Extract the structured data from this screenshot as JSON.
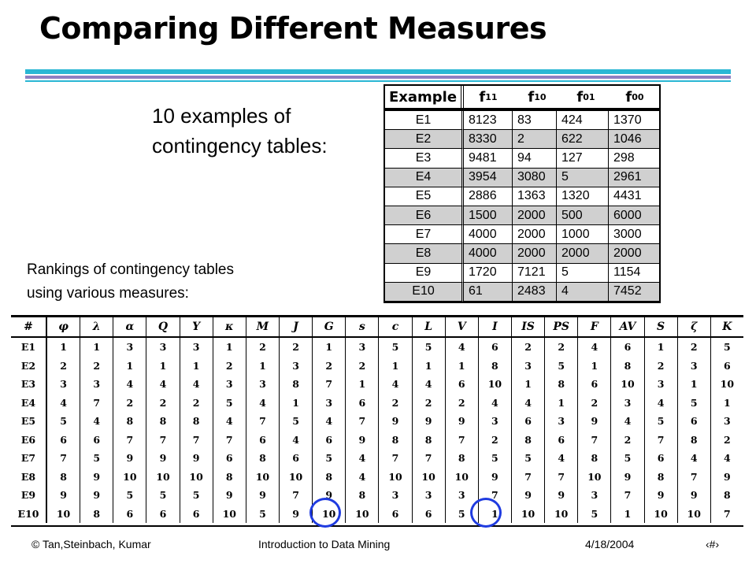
{
  "slide": {
    "title": "Comparing Different Measures",
    "intro_line1": "10 examples of",
    "intro_line2": "contingency tables:",
    "rank_line1": "Rankings of contingency tables",
    "rank_line2": "using various measures:"
  },
  "contingency": {
    "header_example": "Example",
    "header_f_prefix": "f",
    "header_subs": [
      "11",
      "10",
      "01",
      "00"
    ],
    "rows": [
      [
        "E1",
        "8123",
        "83",
        "424",
        "1370"
      ],
      [
        "E2",
        "8330",
        "2",
        "622",
        "1046"
      ],
      [
        "E3",
        "9481",
        "94",
        "127",
        "298"
      ],
      [
        "E4",
        "3954",
        "3080",
        "5",
        "2961"
      ],
      [
        "E5",
        "2886",
        "1363",
        "1320",
        "4431"
      ],
      [
        "E6",
        "1500",
        "2000",
        "500",
        "6000"
      ],
      [
        "E7",
        "4000",
        "2000",
        "1000",
        "3000"
      ],
      [
        "E8",
        "4000",
        "2000",
        "2000",
        "2000"
      ],
      [
        "E9",
        "1720",
        "7121",
        "5",
        "1154"
      ],
      [
        "E10",
        "61",
        "2483",
        "4",
        "7452"
      ]
    ]
  },
  "ranking": {
    "headers": [
      "#",
      "φ",
      "λ",
      "α",
      "Q",
      "Y",
      "κ",
      "M",
      "J",
      "G",
      "s",
      "c",
      "L",
      "V",
      "I",
      "IS",
      "PS",
      "F",
      "AV",
      "S",
      "ζ",
      "K"
    ],
    "rows": [
      [
        "E1",
        "1",
        "1",
        "3",
        "3",
        "3",
        "1",
        "2",
        "2",
        "1",
        "3",
        "5",
        "5",
        "4",
        "6",
        "2",
        "2",
        "4",
        "6",
        "1",
        "2",
        "5"
      ],
      [
        "E2",
        "2",
        "2",
        "1",
        "1",
        "1",
        "2",
        "1",
        "3",
        "2",
        "2",
        "1",
        "1",
        "1",
        "8",
        "3",
        "5",
        "1",
        "8",
        "2",
        "3",
        "6"
      ],
      [
        "E3",
        "3",
        "3",
        "4",
        "4",
        "4",
        "3",
        "3",
        "8",
        "7",
        "1",
        "4",
        "4",
        "6",
        "10",
        "1",
        "8",
        "6",
        "10",
        "3",
        "1",
        "10"
      ],
      [
        "E4",
        "4",
        "7",
        "2",
        "2",
        "2",
        "5",
        "4",
        "1",
        "3",
        "6",
        "2",
        "2",
        "2",
        "4",
        "4",
        "1",
        "2",
        "3",
        "4",
        "5",
        "1"
      ],
      [
        "E5",
        "5",
        "4",
        "8",
        "8",
        "8",
        "4",
        "7",
        "5",
        "4",
        "7",
        "9",
        "9",
        "9",
        "3",
        "6",
        "3",
        "9",
        "4",
        "5",
        "6",
        "3"
      ],
      [
        "E6",
        "6",
        "6",
        "7",
        "7",
        "7",
        "7",
        "6",
        "4",
        "6",
        "9",
        "8",
        "8",
        "7",
        "2",
        "8",
        "6",
        "7",
        "2",
        "7",
        "8",
        "2"
      ],
      [
        "E7",
        "7",
        "5",
        "9",
        "9",
        "9",
        "6",
        "8",
        "6",
        "5",
        "4",
        "7",
        "7",
        "8",
        "5",
        "5",
        "4",
        "8",
        "5",
        "6",
        "4",
        "4"
      ],
      [
        "E8",
        "8",
        "9",
        "10",
        "10",
        "10",
        "8",
        "10",
        "10",
        "8",
        "4",
        "10",
        "10",
        "10",
        "9",
        "7",
        "7",
        "10",
        "9",
        "8",
        "7",
        "9"
      ],
      [
        "E9",
        "9",
        "9",
        "5",
        "5",
        "5",
        "9",
        "9",
        "7",
        "9",
        "8",
        "3",
        "3",
        "3",
        "7",
        "9",
        "9",
        "3",
        "7",
        "9",
        "9",
        "8"
      ],
      [
        "E10",
        "10",
        "8",
        "6",
        "6",
        "6",
        "10",
        "5",
        "9",
        "10",
        "10",
        "6",
        "6",
        "5",
        "1",
        "10",
        "10",
        "5",
        "1",
        "10",
        "10",
        "7"
      ]
    ],
    "highlighted_columns": [
      "G",
      "I"
    ],
    "highlight_color": "#1f3be0"
  },
  "footer": {
    "copyright": "© Tan,Steinbach, Kumar",
    "course": "Introduction to Data Mining",
    "date": "4/18/2004",
    "page_glyph": "‹#›"
  },
  "colors": {
    "bar_primary": "#2ab7d4",
    "bar_secondary": "#8f7fc2",
    "row_shade": "#d0d0d0"
  }
}
